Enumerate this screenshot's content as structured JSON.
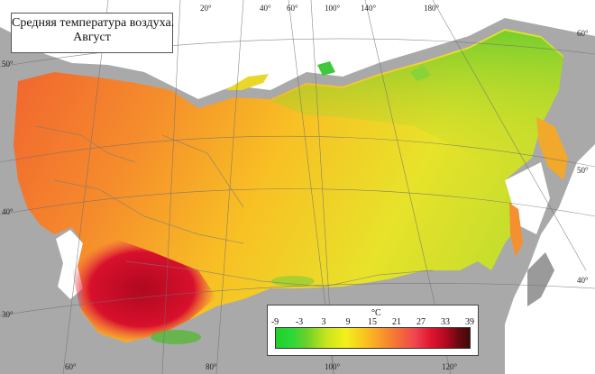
{
  "title": {
    "line1": "Средняя температура воздуха.",
    "line2": "Август"
  },
  "top_longitudes": [
    "20°",
    "40°",
    "60°",
    "100°",
    "140°",
    "180°"
  ],
  "bottom_longitudes": [
    "60°",
    "80°",
    "100°",
    "120°"
  ],
  "left_latitudes": [
    "50°",
    "40°",
    "30°"
  ],
  "right_latitudes": [
    "60°",
    "50°",
    "40°"
  ],
  "legend": {
    "unit": "°C",
    "ticks": [
      "-9",
      "-3",
      "3",
      "9",
      "15",
      "21",
      "27",
      "33",
      "39"
    ]
  },
  "colors": {
    "background": "#a7a7a7",
    "sea": "#ffffff",
    "cold": "#1fd12a",
    "warm": "#f7962a",
    "hot": "#b00820"
  }
}
